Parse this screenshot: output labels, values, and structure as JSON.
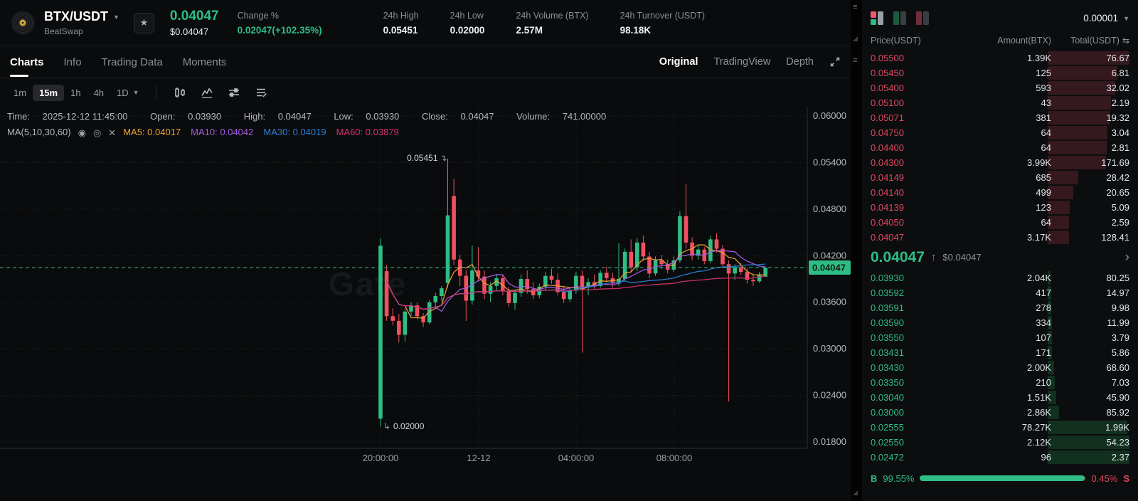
{
  "colors": {
    "green": "#2ebd85",
    "red": "#e04a5f",
    "candle_up": "#2ebd85",
    "candle_down": "#f1505f",
    "ma5": "#f0a132",
    "ma10": "#a45ee5",
    "ma30": "#2b7fd9",
    "ma60": "#d2346e"
  },
  "icons": {
    "pair-caret": "▼",
    "star": "★",
    "dropdown-caret": "▼",
    "eye": "◉",
    "eye-outline": "◎",
    "close": "✕",
    "swap": "⇆",
    "chevron-right": "›",
    "up-arrow": "↑",
    "menu-handle": "≡",
    "high-arrow": "↴",
    "low-arrow": "↳"
  },
  "header": {
    "pair": "BTX/USDT",
    "network": "BeatSwap",
    "last_price": "0.04047",
    "last_price_usd": "$0.04047",
    "stats": [
      {
        "label": "Change %",
        "value": "0.02047(+102.35%)"
      },
      {
        "label": "24h High",
        "value": "0.05451"
      },
      {
        "label": "24h Low",
        "value": "0.02000"
      },
      {
        "label": "24h Volume (BTX)",
        "value": "2.57M"
      },
      {
        "label": "24h Turnover (USDT)",
        "value": "98.18K"
      }
    ]
  },
  "tabs": {
    "left": [
      {
        "label": "Charts"
      },
      {
        "label": "Info"
      },
      {
        "label": "Trading Data"
      },
      {
        "label": "Moments"
      }
    ],
    "active": "Charts",
    "right": [
      {
        "label": "Original"
      },
      {
        "label": "TradingView"
      },
      {
        "label": "Depth"
      }
    ],
    "right_active": "Original"
  },
  "toolbar": {
    "intervals": [
      {
        "label": "1m"
      },
      {
        "label": "15m"
      },
      {
        "label": "1h"
      },
      {
        "label": "4h"
      },
      {
        "label": "1D"
      }
    ],
    "active": "15m"
  },
  "chart_info": {
    "time_label": "Time:",
    "time": "2025-12-12 11:45:00",
    "open_label": "Open:",
    "open": "0.03930",
    "high_label": "High:",
    "high": "0.04047",
    "low_label": "Low:",
    "low": "0.03930",
    "close_label": "Close:",
    "close": "0.04047",
    "volume_label": "Volume:",
    "volume": "741.00000",
    "ma_title": "MA(5,10,30,60)",
    "ma_items": [
      {
        "label": "MA5:",
        "value": "0.04017"
      },
      {
        "label": "MA10:",
        "value": "0.04042"
      },
      {
        "label": "MA30:",
        "value": "0.04019"
      },
      {
        "label": "MA60:",
        "value": "0.03879"
      }
    ]
  },
  "chart_data": {
    "type": "candlestick",
    "pair": "BTX/USDT",
    "interval": "15m",
    "last_price": "0.04047",
    "watermark": "Gate",
    "y_axis": {
      "ticks": [
        "0.06000",
        "0.05400",
        "0.04800",
        "0.04200",
        "0.03600",
        "0.03000",
        "0.02400",
        "0.01800"
      ],
      "range": [
        0.018,
        0.06
      ]
    },
    "x_axis": {
      "ticks": [
        "20:00:00",
        "12-12",
        "04:00:00",
        "08:00:00"
      ],
      "positions": [
        535,
        673,
        810,
        948
      ]
    },
    "ma_windows": [
      5,
      10,
      30,
      60
    ],
    "ma_colors": [
      "#f0a132",
      "#a45ee5",
      "#2b7fd9",
      "#d2346e"
    ],
    "colors": {
      "up": "#2ebd85",
      "down": "#f1505f"
    },
    "annotations": [
      {
        "text": "0.05451",
        "glyph": "↴",
        "index": 11,
        "at": "high"
      },
      {
        "text": "0.02000",
        "glyph": "↳",
        "index": 0,
        "at": "low"
      }
    ],
    "candles": [
      [
        0.021,
        0.0442,
        0.02,
        0.0433
      ],
      [
        0.04,
        0.0408,
        0.0336,
        0.0342
      ],
      [
        0.0342,
        0.0352,
        0.033,
        0.0336
      ],
      [
        0.0336,
        0.0345,
        0.0308,
        0.0318
      ],
      [
        0.0318,
        0.0352,
        0.0309,
        0.0348
      ],
      [
        0.0348,
        0.036,
        0.0342,
        0.0356
      ],
      [
        0.0356,
        0.036,
        0.0338,
        0.0342
      ],
      [
        0.0342,
        0.0346,
        0.0328,
        0.0334
      ],
      [
        0.0334,
        0.0363,
        0.0332,
        0.036
      ],
      [
        0.036,
        0.0372,
        0.0354,
        0.0368
      ],
      [
        0.0368,
        0.0381,
        0.0361,
        0.0378
      ],
      [
        0.0385,
        0.05451,
        0.0379,
        0.0472
      ],
      [
        0.0497,
        0.0519,
        0.0408,
        0.0415
      ],
      [
        0.0415,
        0.0421,
        0.0381,
        0.0394
      ],
      [
        0.0394,
        0.0401,
        0.0336,
        0.0362
      ],
      [
        0.0362,
        0.0433,
        0.0357,
        0.0401
      ],
      [
        0.0401,
        0.0431,
        0.0387,
        0.0393
      ],
      [
        0.0393,
        0.0401,
        0.0364,
        0.0371
      ],
      [
        0.0371,
        0.0386,
        0.036,
        0.0381
      ],
      [
        0.0381,
        0.0396,
        0.0374,
        0.0391
      ],
      [
        0.0391,
        0.0396,
        0.0369,
        0.0374
      ],
      [
        0.0374,
        0.038,
        0.0354,
        0.0359
      ],
      [
        0.0359,
        0.0376,
        0.035,
        0.0372
      ],
      [
        0.0372,
        0.0396,
        0.0367,
        0.039
      ],
      [
        0.039,
        0.0401,
        0.0371,
        0.0377
      ],
      [
        0.0377,
        0.0386,
        0.0364,
        0.0369
      ],
      [
        0.0369,
        0.0384,
        0.0365,
        0.038
      ],
      [
        0.038,
        0.0399,
        0.0375,
        0.0394
      ],
      [
        0.0394,
        0.0403,
        0.0384,
        0.0389
      ],
      [
        0.0389,
        0.0397,
        0.0369,
        0.0373
      ],
      [
        0.0373,
        0.0381,
        0.0359,
        0.0364
      ],
      [
        0.0364,
        0.0379,
        0.036,
        0.0375
      ],
      [
        0.0375,
        0.0399,
        0.0371,
        0.0394
      ],
      [
        0.0394,
        0.0401,
        0.0295,
        0.0379
      ],
      [
        0.0379,
        0.0391,
        0.0369,
        0.0386
      ],
      [
        0.0386,
        0.0396,
        0.0377,
        0.0381
      ],
      [
        0.0381,
        0.0401,
        0.0379,
        0.0398
      ],
      [
        0.0398,
        0.0406,
        0.0387,
        0.0391
      ],
      [
        0.0391,
        0.0398,
        0.0379,
        0.0384
      ],
      [
        0.0384,
        0.0436,
        0.0381,
        0.039
      ],
      [
        0.039,
        0.0429,
        0.0388,
        0.0425
      ],
      [
        0.0425,
        0.0441,
        0.0399,
        0.0405
      ],
      [
        0.0405,
        0.0443,
        0.04,
        0.0437
      ],
      [
        0.0437,
        0.0446,
        0.0413,
        0.0419
      ],
      [
        0.0419,
        0.0425,
        0.0391,
        0.0397
      ],
      [
        0.0397,
        0.0419,
        0.0394,
        0.0414
      ],
      [
        0.0414,
        0.0421,
        0.0403,
        0.0409
      ],
      [
        0.0409,
        0.0415,
        0.0397,
        0.0402
      ],
      [
        0.0402,
        0.0419,
        0.0399,
        0.0414
      ],
      [
        0.0414,
        0.0477,
        0.0411,
        0.0471
      ],
      [
        0.0471,
        0.0513,
        0.0429,
        0.0437
      ],
      [
        0.0437,
        0.0444,
        0.0414,
        0.042
      ],
      [
        0.042,
        0.0433,
        0.0415,
        0.0428
      ],
      [
        0.0428,
        0.0431,
        0.0409,
        0.0413
      ],
      [
        0.0413,
        0.0446,
        0.041,
        0.0441
      ],
      [
        0.0441,
        0.0449,
        0.0424,
        0.0429
      ],
      [
        0.0429,
        0.0434,
        0.0404,
        0.0409
      ],
      [
        0.0409,
        0.0414,
        0.0232,
        0.0397
      ],
      [
        0.0397,
        0.0409,
        0.0389,
        0.0405
      ],
      [
        0.0405,
        0.0411,
        0.0395,
        0.0399
      ],
      [
        0.0399,
        0.0404,
        0.0384,
        0.0389
      ],
      [
        0.0389,
        0.0397,
        0.0381,
        0.0387
      ],
      [
        0.0387,
        0.0399,
        0.0385,
        0.0396
      ],
      [
        0.0393,
        0.04047,
        0.0393,
        0.04047
      ]
    ]
  },
  "order_book": {
    "precision": "0.00001",
    "columns": {
      "price": "Price(USDT)",
      "amount": "Amount(BTX)",
      "total": "Total(USDT)"
    },
    "asks": [
      {
        "price": "0.05500",
        "amount": "1.39K",
        "total": "76.67",
        "depth": 1.0
      },
      {
        "price": "0.05450",
        "amount": "125",
        "total": "6.81",
        "depth": 0.85
      },
      {
        "price": "0.05400",
        "amount": "593",
        "total": "32.02",
        "depth": 0.83
      },
      {
        "price": "0.05100",
        "amount": "43",
        "total": "2.19",
        "depth": 0.77
      },
      {
        "price": "0.05071",
        "amount": "381",
        "total": "19.32",
        "depth": 0.76
      },
      {
        "price": "0.04750",
        "amount": "64",
        "total": "3.04",
        "depth": 0.73
      },
      {
        "price": "0.04400",
        "amount": "64",
        "total": "2.81",
        "depth": 0.72
      },
      {
        "price": "0.04300",
        "amount": "3.99K",
        "total": "171.69",
        "depth": 0.71
      },
      {
        "price": "0.04149",
        "amount": "685",
        "total": "28.42",
        "depth": 0.37
      },
      {
        "price": "0.04140",
        "amount": "499",
        "total": "20.65",
        "depth": 0.31
      },
      {
        "price": "0.04139",
        "amount": "123",
        "total": "5.09",
        "depth": 0.27
      },
      {
        "price": "0.04050",
        "amount": "64",
        "total": "2.59",
        "depth": 0.26
      },
      {
        "price": "0.04047",
        "amount": "3.17K",
        "total": "128.41",
        "depth": 0.26
      }
    ],
    "mid": {
      "price": "0.04047",
      "arrow": "↑",
      "usd": "$0.04047",
      "chevron": "›"
    },
    "bids": [
      {
        "price": "0.03930",
        "amount": "2.04K",
        "total": "80.25",
        "depth": 0.034
      },
      {
        "price": "0.03592",
        "amount": "417",
        "total": "14.97",
        "depth": 0.04
      },
      {
        "price": "0.03591",
        "amount": "278",
        "total": "9.98",
        "depth": 0.044
      },
      {
        "price": "0.03590",
        "amount": "334",
        "total": "11.99",
        "depth": 0.049
      },
      {
        "price": "0.03550",
        "amount": "107",
        "total": "3.79",
        "depth": 0.051
      },
      {
        "price": "0.03431",
        "amount": "171",
        "total": "5.86",
        "depth": 0.053
      },
      {
        "price": "0.03430",
        "amount": "2.00K",
        "total": "68.60",
        "depth": 0.082
      },
      {
        "price": "0.03350",
        "amount": "210",
        "total": "7.03",
        "depth": 0.085
      },
      {
        "price": "0.03040",
        "amount": "1.51K",
        "total": "45.90",
        "depth": 0.104
      },
      {
        "price": "0.03000",
        "amount": "2.86K",
        "total": "85.92",
        "depth": 0.14
      },
      {
        "price": "0.02555",
        "amount": "78.27K",
        "total": "1.99K",
        "depth": 0.976
      },
      {
        "price": "0.02550",
        "amount": "2.12K",
        "total": "54.23",
        "depth": 0.999
      },
      {
        "price": "0.02472",
        "amount": "96",
        "total": "2.37",
        "depth": 1.0
      }
    ],
    "ratio": {
      "buy_label": "B",
      "buy_pct": "99.55%",
      "sell_pct": "0.45%",
      "sell_label": "S",
      "buy_value": 99.55,
      "sell_value": 0.45
    }
  }
}
